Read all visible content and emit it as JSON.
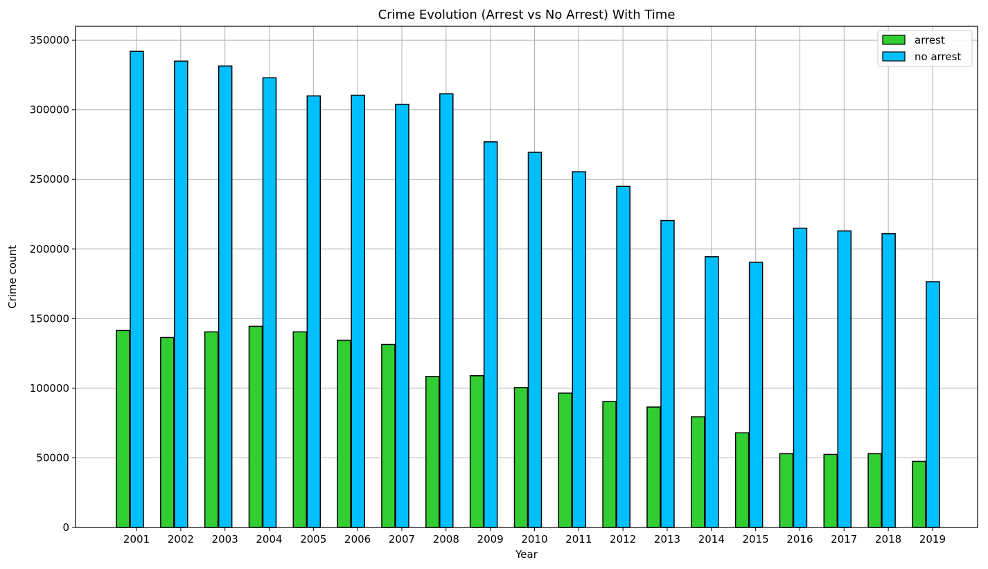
{
  "chart_data": {
    "type": "bar",
    "title": "Crime Evolution (Arrest vs No Arrest) With Time",
    "xlabel": "Year",
    "ylabel": "Crime count",
    "ylim": [
      0,
      360000
    ],
    "yticks": [
      0,
      50000,
      100000,
      150000,
      200000,
      250000,
      300000,
      350000
    ],
    "grid": true,
    "legend_position": "top-right",
    "categories": [
      "2001",
      "2002",
      "2003",
      "2004",
      "2005",
      "2006",
      "2007",
      "2008",
      "2009",
      "2010",
      "2011",
      "2012",
      "2013",
      "2014",
      "2015",
      "2016",
      "2017",
      "2018",
      "2019"
    ],
    "series": [
      {
        "name": "arrest",
        "color": "#32cd32",
        "values": [
          141500,
          136500,
          140500,
          144500,
          140500,
          134500,
          131500,
          108500,
          109000,
          100500,
          96500,
          90500,
          86500,
          79500,
          68000,
          53000,
          52500,
          53000,
          47500
        ]
      },
      {
        "name": "no arrest",
        "color": "#00bfff",
        "values": [
          342000,
          335000,
          331500,
          323000,
          310000,
          310500,
          304000,
          311500,
          277000,
          269500,
          255500,
          245000,
          220500,
          194500,
          190500,
          215000,
          213000,
          211000,
          176500
        ]
      }
    ]
  }
}
